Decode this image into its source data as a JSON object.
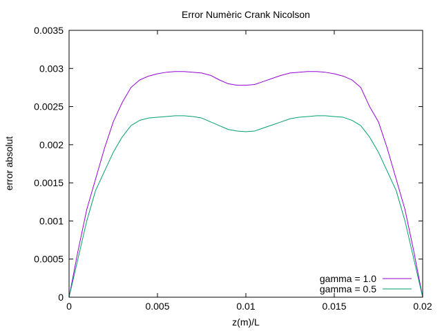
{
  "chart_data": {
    "type": "line",
    "title": "Error Numèric Crank Nicolson",
    "xlabel": "z(m)/L",
    "ylabel": "error absolut",
    "xlim": [
      0,
      0.02
    ],
    "ylim": [
      0,
      0.0035
    ],
    "x_ticks": [
      0,
      0.005,
      0.01,
      0.015,
      0.02
    ],
    "x_tick_labels": [
      "0",
      "0.005",
      "0.01",
      "0.015",
      "0.02"
    ],
    "y_ticks": [
      0,
      0.0005,
      0.001,
      0.0015,
      0.002,
      0.0025,
      0.003,
      0.0035
    ],
    "y_tick_labels": [
      "0",
      "0.0005",
      "0.001",
      "0.0015",
      "0.002",
      "0.0025",
      "0.003",
      "0.0035"
    ],
    "grid": false,
    "legend_position": "bottom-right",
    "x": [
      0,
      0.0005,
      0.001,
      0.0015,
      0.002,
      0.0025,
      0.003,
      0.0035,
      0.004,
      0.0045,
      0.005,
      0.0055,
      0.006,
      0.0065,
      0.007,
      0.0075,
      0.008,
      0.0085,
      0.009,
      0.0095,
      0.01,
      0.0105,
      0.011,
      0.0115,
      0.012,
      0.0125,
      0.013,
      0.0135,
      0.014,
      0.0145,
      0.015,
      0.0155,
      0.016,
      0.0165,
      0.017,
      0.0175,
      0.018,
      0.0185,
      0.019,
      0.0195,
      0.02
    ],
    "series": [
      {
        "name": "gamma = 1.0",
        "color": "#9400d3",
        "values": [
          0,
          0.0006,
          0.00115,
          0.00155,
          0.00195,
          0.0023,
          0.00255,
          0.00275,
          0.00285,
          0.0029,
          0.00293,
          0.00295,
          0.00296,
          0.00296,
          0.00295,
          0.00294,
          0.00291,
          0.00285,
          0.0028,
          0.00278,
          0.00278,
          0.00279,
          0.00283,
          0.00287,
          0.00291,
          0.00294,
          0.00295,
          0.00296,
          0.00296,
          0.00295,
          0.00293,
          0.0029,
          0.00285,
          0.00275,
          0.0025,
          0.0023,
          0.00195,
          0.00155,
          0.00115,
          0.0006,
          0
        ]
      },
      {
        "name": "gamma = 0.5",
        "color": "#009e73",
        "values": [
          0,
          0.0005,
          0.001,
          0.0014,
          0.00165,
          0.0019,
          0.0021,
          0.00225,
          0.00232,
          0.00235,
          0.00236,
          0.00237,
          0.00238,
          0.00238,
          0.00237,
          0.00235,
          0.0023,
          0.00225,
          0.0022,
          0.00218,
          0.00217,
          0.00218,
          0.00222,
          0.00226,
          0.0023,
          0.00234,
          0.00236,
          0.00237,
          0.00238,
          0.00238,
          0.00237,
          0.00236,
          0.00232,
          0.00225,
          0.0021,
          0.0019,
          0.00165,
          0.0014,
          0.001,
          0.0005,
          0
        ]
      }
    ]
  }
}
